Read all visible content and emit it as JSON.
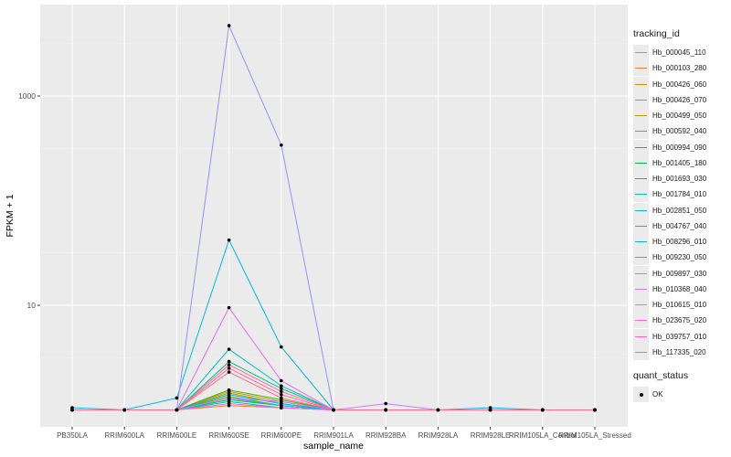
{
  "chart_data": {
    "type": "line",
    "xlabel": "sample_name",
    "ylabel": "FPKM + 1",
    "y_scale": "log10",
    "y_ticks": [
      10,
      1000
    ],
    "grid": true,
    "legend_placement": "right",
    "categories": [
      "PB350LA",
      "RRIM600LA",
      "RRIM600LE",
      "RRIM600SE",
      "RRIM600PE",
      "RRIM901LA",
      "RRIM928BA",
      "RRIM928LA",
      "RRIM928LE",
      "RRIM105LA_Control",
      "RRIM105LA_Stressed"
    ],
    "series": [
      {
        "name": "Hb_000045_110",
        "color": "#F8766D",
        "values": [
          1.0,
          1.0,
          1.0,
          2.3,
          1.3,
          1.0,
          1.0,
          1.0,
          1.0,
          1.0,
          1.0
        ]
      },
      {
        "name": "Hb_000103_280",
        "color": "#EA8331",
        "values": [
          1.0,
          1.0,
          1.0,
          1.1,
          1.05,
          1.0,
          1.0,
          1.0,
          1.0,
          1.0,
          1.0
        ]
      },
      {
        "name": "Hb_000426_060",
        "color": "#D89000",
        "values": [
          1.0,
          1.0,
          1.0,
          1.5,
          1.2,
          1.0,
          1.0,
          1.0,
          1.0,
          1.0,
          1.0
        ]
      },
      {
        "name": "Hb_000426_070",
        "color": "#C09B00",
        "values": [
          1.0,
          1.0,
          1.0,
          1.3,
          1.1,
          1.0,
          1.0,
          1.0,
          1.0,
          1.0,
          1.0
        ]
      },
      {
        "name": "Hb_000499_050",
        "color": "#A3A500",
        "values": [
          1.0,
          1.0,
          1.0,
          1.45,
          1.15,
          1.0,
          1.0,
          1.0,
          1.0,
          1.0,
          1.0
        ]
      },
      {
        "name": "Hb_000592_040",
        "color": "#7CAE00",
        "values": [
          1.0,
          1.0,
          1.0,
          1.35,
          1.1,
          1.0,
          1.0,
          1.0,
          1.0,
          1.0,
          1.0
        ]
      },
      {
        "name": "Hb_000994_090",
        "color": "#39B600",
        "values": [
          1.0,
          1.0,
          1.0,
          1.55,
          1.25,
          1.0,
          1.0,
          1.0,
          1.0,
          1.0,
          1.0
        ]
      },
      {
        "name": "Hb_001405_180",
        "color": "#00BB4E",
        "values": [
          1.0,
          1.0,
          1.0,
          1.25,
          1.1,
          1.0,
          1.0,
          1.0,
          1.0,
          1.0,
          1.0
        ]
      },
      {
        "name": "Hb_001693_030",
        "color": "#00BF7D",
        "values": [
          1.0,
          1.0,
          1.0,
          2.9,
          1.6,
          1.0,
          1.0,
          1.0,
          1.0,
          1.0,
          1.0
        ]
      },
      {
        "name": "Hb_001784_010",
        "color": "#00C1A3",
        "values": [
          1.0,
          1.0,
          1.0,
          1.2,
          1.05,
          1.0,
          1.0,
          1.0,
          1.0,
          1.0,
          1.0
        ]
      },
      {
        "name": "Hb_002851_050",
        "color": "#00BFC4",
        "values": [
          1.0,
          1.0,
          1.0,
          3.8,
          1.7,
          1.0,
          1.0,
          1.0,
          1.0,
          1.0,
          1.0
        ]
      },
      {
        "name": "Hb_004767_040",
        "color": "#00BAE0",
        "values": [
          1.05,
          1.0,
          1.3,
          42.0,
          4.0,
          1.0,
          1.0,
          1.0,
          1.0,
          1.0,
          1.0
        ]
      },
      {
        "name": "Hb_008296_010",
        "color": "#00B0F6",
        "values": [
          1.0,
          1.0,
          1.0,
          1.4,
          1.15,
          1.0,
          1.0,
          1.0,
          1.05,
          1.0,
          1.0
        ]
      },
      {
        "name": "Hb_009230_050",
        "color": "#35A2FF",
        "values": [
          1.0,
          1.0,
          1.0,
          1.3,
          1.1,
          1.0,
          1.0,
          1.0,
          1.0,
          1.0,
          1.0
        ]
      },
      {
        "name": "Hb_009897_030",
        "color": "#9590FF",
        "values": [
          1.0,
          1.0,
          1.0,
          4700,
          340,
          1.0,
          1.0,
          1.0,
          1.0,
          1.0,
          1.0
        ]
      },
      {
        "name": "Hb_010368_040",
        "color": "#C77CFF",
        "values": [
          1.0,
          1.0,
          1.0,
          1.3,
          1.2,
          1.0,
          1.15,
          1.0,
          1.0,
          1.0,
          1.0
        ]
      },
      {
        "name": "Hb_010615_010",
        "color": "#E76BF3",
        "values": [
          1.0,
          1.0,
          1.0,
          9.5,
          1.9,
          1.0,
          1.0,
          1.0,
          1.0,
          1.0,
          1.0
        ]
      },
      {
        "name": "Hb_023675_020",
        "color": "#FA62DB",
        "values": [
          1.0,
          1.0,
          1.0,
          1.15,
          1.05,
          1.0,
          1.0,
          1.0,
          1.0,
          1.0,
          1.0
        ]
      },
      {
        "name": "Hb_039757_010",
        "color": "#FF62BC",
        "values": [
          1.0,
          1.0,
          1.0,
          2.5,
          1.4,
          1.0,
          1.0,
          1.0,
          1.0,
          1.0,
          1.0
        ]
      },
      {
        "name": "Hb_117335_020",
        "color": "#FF6C91",
        "values": [
          1.0,
          1.0,
          1.0,
          2.7,
          1.5,
          1.0,
          1.0,
          1.0,
          1.0,
          1.0,
          1.0
        ]
      }
    ]
  },
  "legend": {
    "title": "tracking_id"
  },
  "legend2": {
    "title": "quant_status",
    "items": [
      {
        "label": "OK"
      }
    ]
  }
}
